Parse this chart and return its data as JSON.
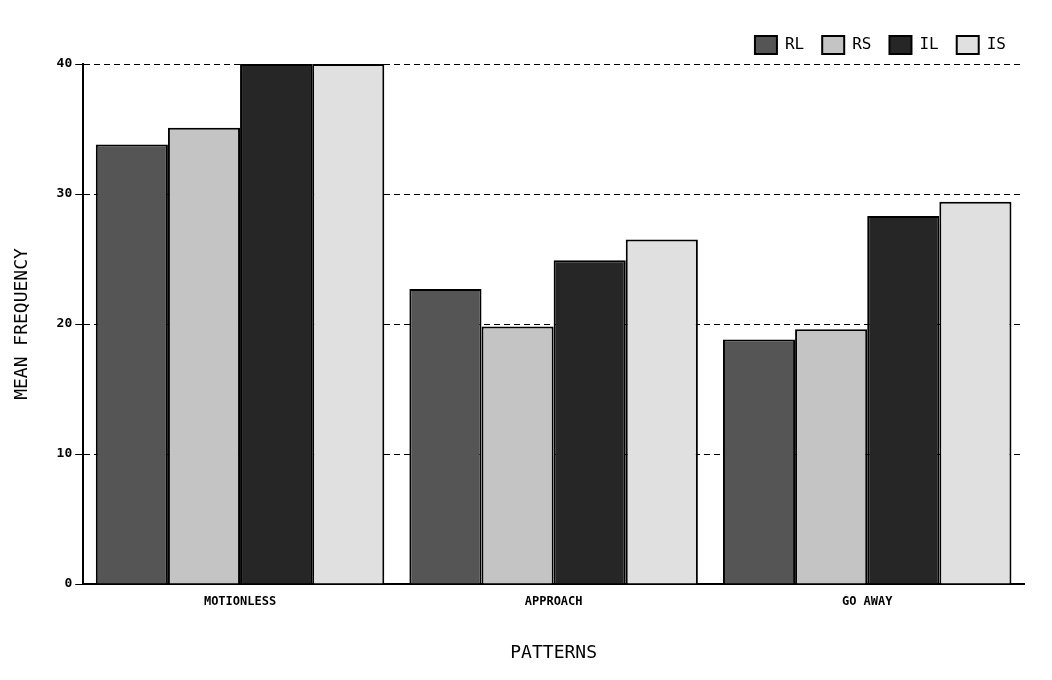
{
  "chart_data": {
    "type": "bar",
    "xlabel": "PATTERNS",
    "ylabel": "MEAN FREQUENCY",
    "categories": [
      "MOTIONLESS",
      "APPROACH",
      "GO AWAY"
    ],
    "series": [
      {
        "name": "RL",
        "color": "#555555",
        "values": [
          33.8,
          22.7,
          18.8
        ]
      },
      {
        "name": "RS",
        "color": "#c4c4c4",
        "values": [
          35.1,
          19.8,
          19.6
        ]
      },
      {
        "name": "IL",
        "color": "#262626",
        "values": [
          40,
          24.9,
          28.3
        ]
      },
      {
        "name": "IS",
        "color": "#e0e0e0",
        "values": [
          40,
          26.5,
          29.4
        ]
      }
    ],
    "ylim": [
      0,
      40
    ],
    "yticks": [
      0,
      10,
      20,
      30,
      40
    ],
    "grid": "y",
    "legend": "top right"
  }
}
